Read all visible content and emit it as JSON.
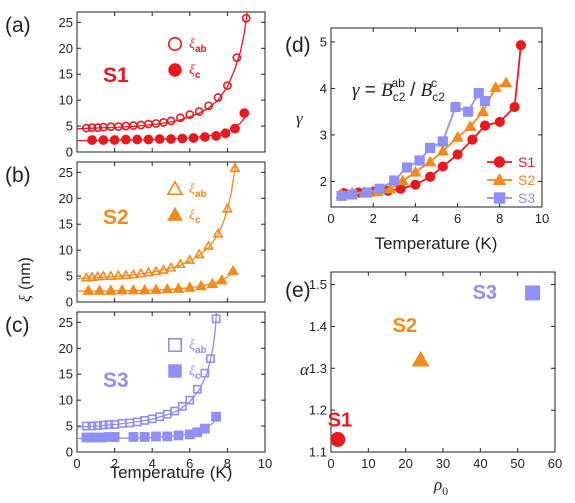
{
  "chart_data": [
    {
      "panel": "(a)",
      "type": "scatter",
      "sample": "S1",
      "xlabel": "",
      "ylabel": "",
      "xlim": [
        0,
        10
      ],
      "ylim": [
        0,
        27
      ],
      "xticks": [
        0,
        2,
        4,
        6,
        8,
        10
      ],
      "yticks": [
        0,
        5,
        10,
        15,
        20,
        25
      ],
      "color": "#e8191f",
      "series": [
        {
          "name": "ξab",
          "sub": "ab",
          "marker": "circle",
          "filled": false,
          "x": [
            0.5,
            0.8,
            1.1,
            1.4,
            1.8,
            2.2,
            2.6,
            3.0,
            3.4,
            3.8,
            4.2,
            4.6,
            5.0,
            5.5,
            6.0,
            6.5,
            7.0,
            7.5,
            8.0,
            8.5,
            9.0
          ],
          "y": [
            4.6,
            4.7,
            4.7,
            4.8,
            4.9,
            4.9,
            5.0,
            5.1,
            5.2,
            5.4,
            5.5,
            5.7,
            6.0,
            6.6,
            7.2,
            7.8,
            8.9,
            10.5,
            12.8,
            18.2,
            25.8
          ],
          "fit_x": [
            0.0,
            0.5,
            1.0,
            1.5,
            2.0,
            2.5,
            3.0,
            3.5,
            4.0,
            4.5,
            5.0,
            5.5,
            6.0,
            6.5,
            7.0,
            7.5,
            8.0,
            8.4,
            8.7,
            8.9,
            9.0,
            9.05
          ],
          "fit_y": [
            4.5,
            4.55,
            4.6,
            4.7,
            4.75,
            4.85,
            4.95,
            5.1,
            5.3,
            5.5,
            5.8,
            6.2,
            6.8,
            7.5,
            8.5,
            10.0,
            12.6,
            16.0,
            19.5,
            23.0,
            25.5,
            27.0
          ]
        },
        {
          "name": "ξc",
          "sub": "c",
          "marker": "circle",
          "filled": true,
          "x": [
            0.8,
            1.4,
            2.0,
            2.6,
            3.2,
            3.8,
            4.4,
            5.0,
            5.6,
            6.2,
            6.8,
            7.4,
            7.9,
            8.4,
            8.9
          ],
          "y": [
            2.3,
            2.3,
            2.3,
            2.4,
            2.4,
            2.4,
            2.5,
            2.5,
            2.6,
            2.7,
            2.9,
            3.1,
            3.6,
            4.5,
            7.5
          ],
          "fit_x": [
            0.0,
            1.0,
            2.0,
            3.0,
            4.0,
            5.0,
            6.0,
            6.5,
            7.0,
            7.5,
            8.0,
            8.4,
            8.7,
            8.9,
            9.0
          ],
          "fit_y": [
            2.2,
            2.2,
            2.25,
            2.3,
            2.4,
            2.5,
            2.7,
            2.9,
            3.1,
            3.5,
            4.0,
            4.8,
            5.6,
            6.5,
            7.3
          ]
        }
      ]
    },
    {
      "panel": "(b)",
      "type": "scatter",
      "sample": "S2",
      "xlabel": "",
      "ylabel": "",
      "xlim": [
        0,
        10
      ],
      "ylim": [
        0,
        27
      ],
      "xticks": [
        0,
        2,
        4,
        6,
        8,
        10
      ],
      "yticks": [
        0,
        5,
        10,
        15,
        20,
        25
      ],
      "color": "#f28a1d",
      "series": [
        {
          "name": "ξab",
          "sub": "ab",
          "marker": "triangle",
          "filled": false,
          "x": [
            0.5,
            0.8,
            1.1,
            1.4,
            1.8,
            2.2,
            2.6,
            3.0,
            3.4,
            3.8,
            4.2,
            4.6,
            5.0,
            5.5,
            6.0,
            6.5,
            7.0,
            7.5,
            8.0,
            8.4
          ],
          "y": [
            4.7,
            4.8,
            4.9,
            5.0,
            5.0,
            5.1,
            5.2,
            5.3,
            5.5,
            5.7,
            5.9,
            6.2,
            6.6,
            7.3,
            8.1,
            9.2,
            10.8,
            13.2,
            18.0,
            25.8
          ],
          "fit_x": [
            0.0,
            1.0,
            2.0,
            3.0,
            4.0,
            5.0,
            5.5,
            6.0,
            6.5,
            7.0,
            7.5,
            7.8,
            8.0,
            8.2,
            8.35,
            8.45
          ],
          "fit_y": [
            4.5,
            4.7,
            4.9,
            5.2,
            5.7,
            6.5,
            7.1,
            7.9,
            9.0,
            10.5,
            13.0,
            15.5,
            17.8,
            21.0,
            24.5,
            27.0
          ]
        },
        {
          "name": "ξc",
          "sub": "c",
          "marker": "triangle",
          "filled": true,
          "x": [
            0.6,
            1.2,
            1.8,
            2.4,
            3.0,
            3.6,
            4.2,
            4.8,
            5.4,
            6.0,
            6.6,
            7.2,
            7.7,
            8.3
          ],
          "y": [
            2.2,
            2.2,
            2.2,
            2.3,
            2.3,
            2.3,
            2.4,
            2.5,
            2.6,
            2.8,
            3.1,
            3.5,
            4.2,
            6.0
          ],
          "fit_x": [
            0.0,
            1.0,
            2.0,
            3.0,
            4.0,
            5.0,
            6.0,
            6.5,
            7.0,
            7.5,
            7.9,
            8.2,
            8.4
          ],
          "fit_y": [
            2.1,
            2.1,
            2.15,
            2.2,
            2.3,
            2.45,
            2.75,
            3.0,
            3.4,
            3.9,
            4.6,
            5.4,
            6.2
          ]
        }
      ]
    },
    {
      "panel": "(c)",
      "type": "scatter",
      "sample": "S3",
      "xlabel": "Temperature (K)",
      "ylabel": "",
      "xlim": [
        0,
        10
      ],
      "ylim": [
        0,
        27
      ],
      "xticks": [
        0,
        2,
        4,
        6,
        8,
        10
      ],
      "yticks": [
        0,
        5,
        10,
        15,
        20,
        25
      ],
      "color": "#8f8ff5",
      "series": [
        {
          "name": "ξab",
          "sub": "ab",
          "marker": "square",
          "filled": false,
          "x": [
            0.5,
            0.8,
            1.1,
            1.4,
            1.7,
            2.0,
            2.4,
            2.8,
            3.2,
            3.6,
            4.0,
            4.4,
            4.8,
            5.2,
            5.6,
            6.0,
            6.4,
            6.8,
            7.1,
            7.4
          ],
          "y": [
            5.0,
            5.0,
            5.1,
            5.2,
            5.3,
            5.3,
            5.5,
            5.6,
            5.8,
            6.1,
            6.4,
            6.8,
            7.3,
            7.9,
            8.8,
            10.0,
            12.1,
            15.2,
            18.0,
            25.7
          ],
          "fit_x": [
            0.0,
            1.0,
            2.0,
            3.0,
            4.0,
            5.0,
            5.5,
            6.0,
            6.5,
            6.9,
            7.1,
            7.25,
            7.35,
            7.42
          ],
          "fit_y": [
            4.8,
            5.0,
            5.3,
            5.7,
            6.3,
            7.4,
            8.3,
            9.7,
            12.0,
            15.0,
            17.8,
            20.5,
            23.5,
            27.0
          ]
        },
        {
          "name": "ξc",
          "sub": "c",
          "marker": "square",
          "filled": true,
          "x": [
            0.5,
            0.9,
            1.3,
            1.7,
            2.0,
            3.0,
            3.6,
            4.2,
            4.8,
            5.4,
            6.0,
            6.4,
            6.8,
            7.4
          ],
          "y": [
            2.8,
            2.8,
            2.8,
            2.9,
            2.9,
            2.9,
            2.9,
            3.0,
            3.0,
            3.2,
            3.4,
            3.8,
            4.5,
            6.8
          ],
          "fit_x": [
            0.0,
            1.0,
            2.0,
            3.0,
            4.0,
            5.0,
            5.5,
            6.0,
            6.5,
            6.9,
            7.2,
            7.4
          ],
          "fit_y": [
            2.6,
            2.6,
            2.65,
            2.7,
            2.8,
            3.0,
            3.2,
            3.5,
            4.0,
            4.7,
            5.5,
            6.3
          ]
        }
      ]
    },
    {
      "panel": "(d)",
      "type": "line",
      "title_formula": "γ = B_c2^ab / B_c2^c",
      "xlabel": "Temperature (K)",
      "ylabel": "γ",
      "xlim": [
        0,
        10
      ],
      "ylim": [
        1.45,
        5.3
      ],
      "xticks": [
        0,
        2,
        4,
        6,
        8,
        10
      ],
      "yticks": [
        2,
        3,
        4,
        5
      ],
      "legend": "bottom-right",
      "series": [
        {
          "name": "S1",
          "marker": "circle",
          "color": "#e8191f",
          "x": [
            0.6,
            1.3,
            2.0,
            2.7,
            3.3,
            4.0,
            4.7,
            5.3,
            6.0,
            6.7,
            7.3,
            8.0,
            8.7,
            9.0
          ],
          "y": [
            1.75,
            1.76,
            1.78,
            1.8,
            1.84,
            1.93,
            2.1,
            2.32,
            2.58,
            2.9,
            3.2,
            3.28,
            3.6,
            4.93
          ]
        },
        {
          "name": "S2",
          "marker": "triangle",
          "color": "#f28a1d",
          "x": [
            0.5,
            1.0,
            1.6,
            2.2,
            2.8,
            3.4,
            4.0,
            4.7,
            5.3,
            6.0,
            6.6,
            7.2,
            7.8,
            8.3
          ],
          "y": [
            1.72,
            1.75,
            1.77,
            1.78,
            1.84,
            2.01,
            2.2,
            2.42,
            2.65,
            2.95,
            3.18,
            3.5,
            4.02,
            4.12
          ]
        },
        {
          "name": "S3",
          "marker": "square",
          "color": "#8f8ff5",
          "x": [
            0.5,
            1.0,
            1.7,
            2.3,
            3.0,
            3.6,
            4.2,
            4.7,
            5.3,
            5.9,
            6.5,
            7.0,
            7.3
          ],
          "y": [
            1.69,
            1.72,
            1.76,
            1.84,
            2.02,
            2.3,
            2.45,
            2.72,
            2.86,
            3.6,
            3.5,
            3.9,
            3.73
          ]
        }
      ]
    },
    {
      "panel": "(e)",
      "type": "scatter",
      "xlabel": "ρ0",
      "ylabel": "α",
      "xlim": [
        0,
        60
      ],
      "ylim": [
        1.1,
        1.53
      ],
      "xticks": [
        0,
        10,
        20,
        30,
        40,
        50,
        60
      ],
      "yticks": [
        1.1,
        1.2,
        1.3,
        1.4,
        1.5
      ],
      "points": [
        {
          "label": "S1",
          "x": 1.8,
          "y": 1.13,
          "marker": "circle",
          "color": "#e8191f"
        },
        {
          "label": "S2",
          "x": 24,
          "y": 1.32,
          "marker": "triangle",
          "color": "#f28a1d"
        },
        {
          "label": "S3",
          "x": 54,
          "y": 1.48,
          "marker": "square",
          "color": "#8f8ff5"
        }
      ]
    }
  ],
  "shared": {
    "ylabel_left": "ξ (nm)",
    "ylabel_left_symbol": "ξ",
    "ylabel_left_unit": "(nm)",
    "legend_symbol": "ξ"
  }
}
